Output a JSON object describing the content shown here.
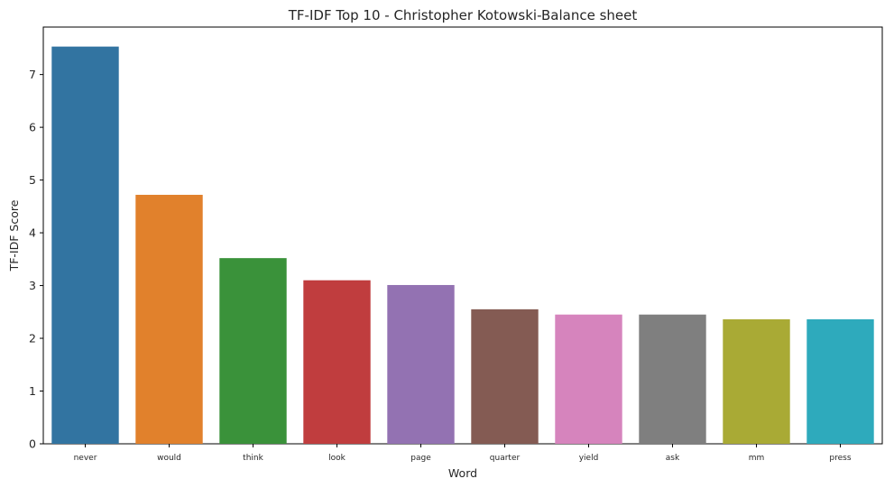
{
  "chart_data": {
    "type": "bar",
    "title": "TF-IDF Top 10 - Christopher Kotowski-Balance sheet",
    "xlabel": "Word",
    "ylabel": "TF-IDF Score",
    "categories": [
      "never",
      "would",
      "think",
      "look",
      "page",
      "quarter",
      "yield",
      "ask",
      "mm",
      "press"
    ],
    "values": [
      7.53,
      4.72,
      3.52,
      3.1,
      3.01,
      2.55,
      2.45,
      2.45,
      2.36,
      2.36
    ],
    "colors": [
      "#3274a1",
      "#e1812c",
      "#3a923a",
      "#c03d3e",
      "#9372b2",
      "#845b53",
      "#d684bd",
      "#7f7f7f",
      "#a9aa35",
      "#2eaabc"
    ],
    "ylim": [
      0,
      7.9
    ],
    "yticks": [
      0,
      1,
      2,
      3,
      4,
      5,
      6,
      7
    ],
    "grid": false,
    "legend": "none"
  }
}
